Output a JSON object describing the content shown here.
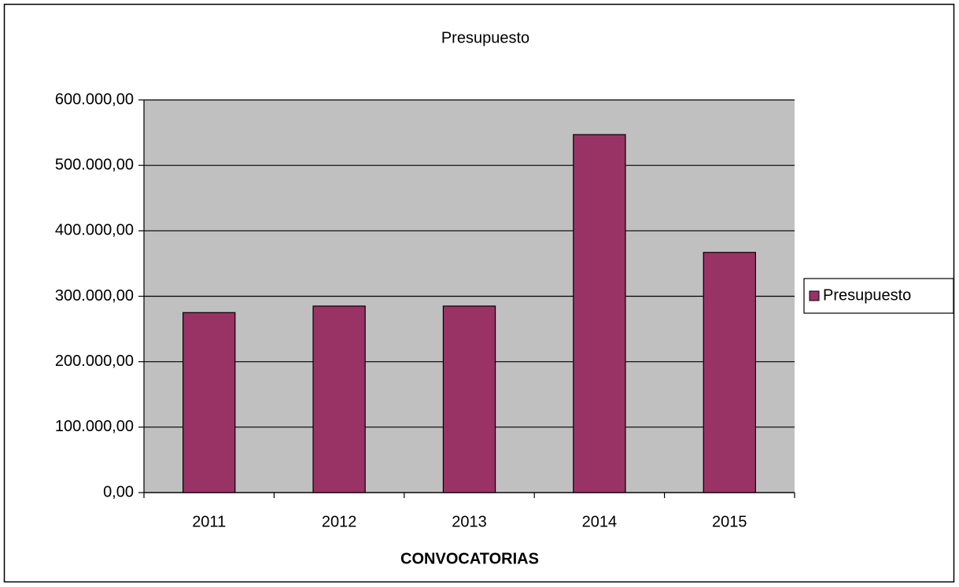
{
  "chart_data": {
    "type": "bar",
    "title": "Presupuesto",
    "x_label": "CONVOCATORIAS",
    "categories": [
      "2011",
      "2012",
      "2013",
      "2014",
      "2015"
    ],
    "series": [
      {
        "name": "Presupuesto",
        "color": "#993366",
        "values": [
          275000,
          285000,
          285000,
          547000,
          367000
        ]
      }
    ],
    "ylim": [
      0,
      600000
    ],
    "yticks": [
      {
        "value": 0,
        "label": "0,00"
      },
      {
        "value": 100000,
        "label": "100.000,00"
      },
      {
        "value": 200000,
        "label": "200.000,00"
      },
      {
        "value": 300000,
        "label": "300.000,00"
      },
      {
        "value": 400000,
        "label": "400.000,00"
      },
      {
        "value": 500000,
        "label": "500.000,00"
      },
      {
        "value": 600000,
        "label": "600.000,00"
      }
    ],
    "grid": true,
    "legend": "right",
    "plot_background": "#c0c0c0"
  }
}
